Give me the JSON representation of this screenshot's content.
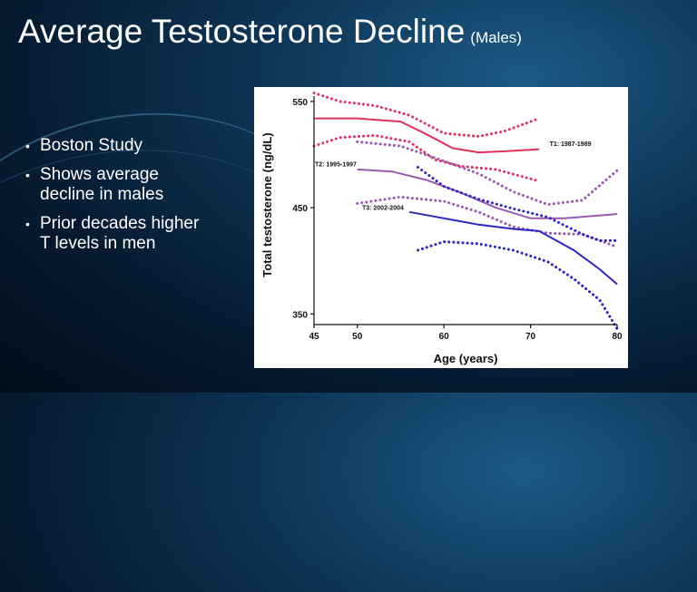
{
  "slide": {
    "title": "Average Testosterone Decline",
    "subtitle": "(Males)",
    "bullets": [
      "Boston Study",
      "Shows average decline in males",
      "Prior decades higher T levels in men"
    ],
    "bullet_glyph": "•"
  },
  "chart_data": {
    "type": "line",
    "title": "",
    "xlabel": "Age (years)",
    "ylabel": "Total testosterone (ng/dL)",
    "xlim": [
      45,
      80
    ],
    "ylim": [
      340,
      555
    ],
    "xticks": [
      45,
      50,
      60,
      70,
      80
    ],
    "yticks": [
      350,
      450,
      550
    ],
    "series": [
      {
        "name": "T1: 1987-1989",
        "color": "#e0325f",
        "mean": {
          "x": [
            45,
            50,
            55,
            58,
            61,
            64,
            67,
            71
          ],
          "y": [
            534,
            534,
            531,
            519,
            506,
            502,
            503,
            505
          ]
        },
        "upper": {
          "x": [
            45,
            48,
            52,
            56,
            60,
            64,
            67,
            71
          ],
          "y": [
            558,
            550,
            546,
            537,
            520,
            517,
            522,
            534
          ]
        },
        "lower": {
          "x": [
            45,
            48,
            52,
            56,
            59,
            62,
            66,
            71
          ],
          "y": [
            508,
            516,
            518,
            512,
            495,
            489,
            486,
            475
          ]
        }
      },
      {
        "name": "T2: 1995-1997",
        "color": "#9a59b0",
        "mean": {
          "x": [
            50,
            54,
            58,
            62,
            66,
            70,
            74,
            77,
            80
          ],
          "y": [
            486,
            484,
            476,
            464,
            450,
            440,
            440,
            442,
            444
          ]
        },
        "upper": {
          "x": [
            50,
            55,
            60,
            64,
            68,
            72,
            76,
            80
          ],
          "y": [
            512,
            508,
            494,
            482,
            465,
            453,
            457,
            485
          ]
        },
        "lower": {
          "x": [
            50,
            55,
            60,
            64,
            68,
            72,
            76,
            80
          ],
          "y": [
            454,
            460,
            456,
            446,
            432,
            426,
            425,
            413
          ]
        }
      },
      {
        "name": "T3: 2002-2004",
        "color": "#2c25c4",
        "mean": {
          "x": [
            56,
            60,
            64,
            68,
            71,
            75,
            78,
            80
          ],
          "y": [
            446,
            440,
            434,
            430,
            428,
            410,
            392,
            378
          ]
        },
        "upper": {
          "x": [
            57,
            60,
            64,
            68,
            72,
            76,
            78,
            80
          ],
          "y": [
            488,
            470,
            458,
            449,
            441,
            425,
            419,
            419
          ]
        },
        "lower": {
          "x": [
            57,
            60,
            64,
            68,
            72,
            75,
            78,
            80
          ],
          "y": [
            410,
            418,
            416,
            410,
            399,
            383,
            363,
            336
          ]
        }
      }
    ]
  }
}
